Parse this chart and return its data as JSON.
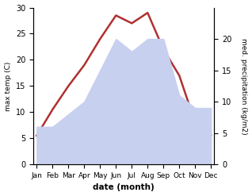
{
  "months": [
    "Jan",
    "Feb",
    "Mar",
    "Apr",
    "May",
    "Jun",
    "Jul",
    "Aug",
    "Sep",
    "Oct",
    "Nov",
    "Dec"
  ],
  "temp": [
    5.5,
    10.5,
    15.0,
    19.0,
    24.0,
    28.5,
    27.0,
    29.0,
    22.0,
    17.0,
    8.0,
    5.5
  ],
  "precip": [
    6,
    6,
    8,
    10,
    15,
    20,
    18,
    20,
    20,
    11,
    9,
    9
  ],
  "temp_color": "#b03030",
  "precip_fill_color": "#c8d0f0",
  "ylabel_left": "max temp (C)",
  "ylabel_right": "med. precipitation (kg/m2)",
  "xlabel": "date (month)",
  "ylim_left": [
    0,
    30
  ],
  "ylim_right": [
    0,
    25
  ],
  "yticks_left": [
    0,
    5,
    10,
    15,
    20,
    25,
    30
  ],
  "yticks_right": [
    0,
    5,
    10,
    15,
    20
  ],
  "background_color": "#ffffff"
}
